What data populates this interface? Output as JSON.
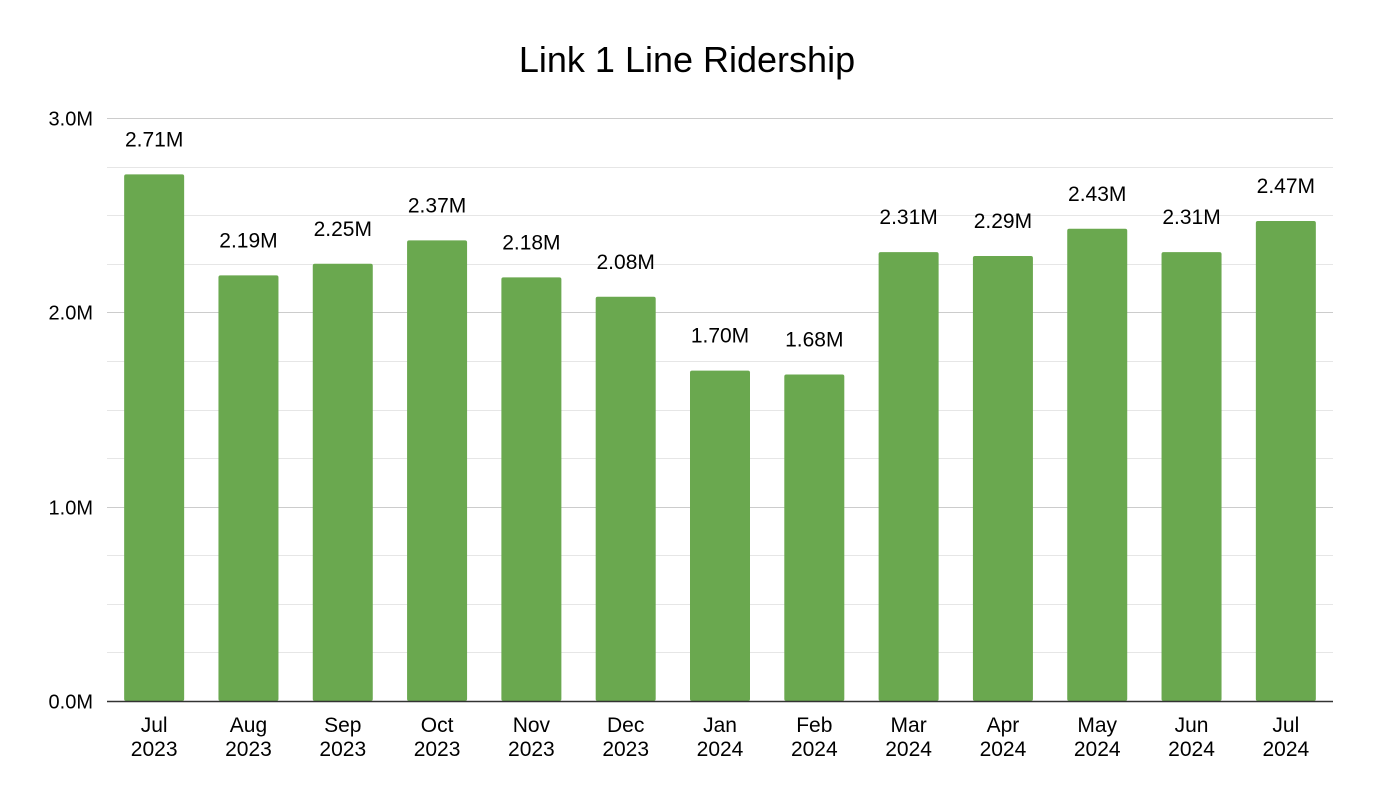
{
  "chart_data": {
    "type": "bar",
    "title": "Link 1 Line Ridership",
    "xlabel": "",
    "ylabel": "",
    "categories": [
      [
        "Jul",
        "2023"
      ],
      [
        "Aug",
        "2023"
      ],
      [
        "Sep",
        "2023"
      ],
      [
        "Oct",
        "2023"
      ],
      [
        "Nov",
        "2023"
      ],
      [
        "Dec",
        "2023"
      ],
      [
        "Jan",
        "2024"
      ],
      [
        "Feb",
        "2024"
      ],
      [
        "Mar",
        "2024"
      ],
      [
        "Apr",
        "2024"
      ],
      [
        "May",
        "2024"
      ],
      [
        "Jun",
        "2024"
      ],
      [
        "Jul",
        "2024"
      ]
    ],
    "series": [
      {
        "values": [
          2.71,
          2.19,
          2.25,
          2.37,
          2.18,
          2.08,
          1.7,
          1.68,
          2.31,
          2.29,
          2.43,
          2.31,
          2.47
        ],
        "data_labels": [
          "2.71M",
          "2.19M",
          "2.25M",
          "2.37M",
          "2.18M",
          "2.08M",
          "1.70M",
          "1.68M",
          "2.31M",
          "2.29M",
          "2.43M",
          "2.31M",
          "2.47M"
        ],
        "color": "#6aa84f"
      }
    ],
    "ylim": [
      0,
      3.0
    ],
    "y_ticks": [
      0,
      1,
      2,
      3
    ],
    "y_tick_labels": [
      "0.0M",
      "1.0M",
      "2.0M",
      "3.0M"
    ],
    "y_minor_gridlines": [
      0.25,
      0.5,
      0.75,
      1.25,
      1.5,
      1.75,
      2.25,
      2.5,
      2.75
    ],
    "grid": true,
    "legend": "none",
    "colors": {
      "bar": "#6aa84f",
      "major_grid": "#cccccc",
      "minor_grid": "#e6e6e6",
      "axis": "#333333",
      "text": "#000000"
    }
  }
}
